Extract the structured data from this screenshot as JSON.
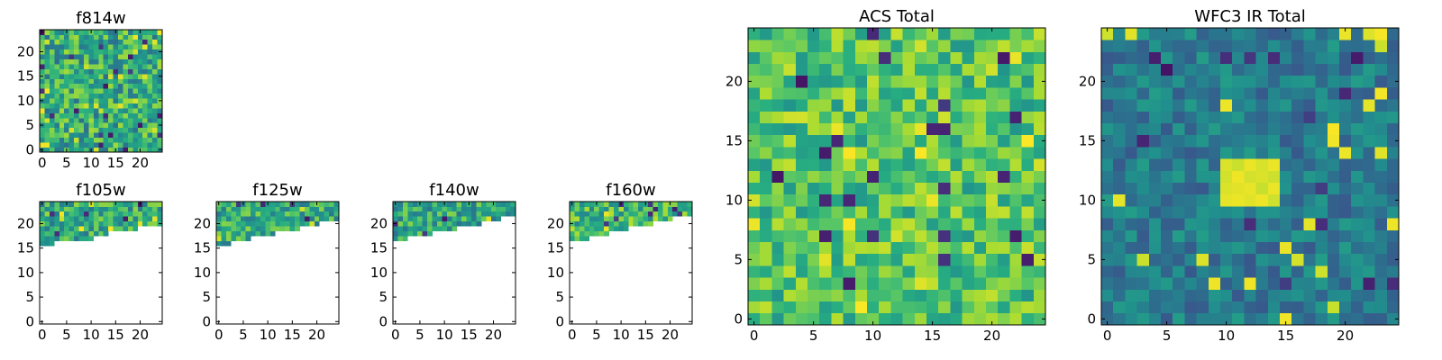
{
  "figure": {
    "colormap": "viridis",
    "background": "#ffffff"
  },
  "chart_data": [
    {
      "type": "heatmap",
      "title": "f814w",
      "grid_size": [
        25,
        25
      ],
      "coverage": "full",
      "value_range": [
        0,
        1
      ],
      "xlim": [
        -0.5,
        24.5
      ],
      "ylim": [
        -0.5,
        24.5
      ],
      "xticks": [
        "0",
        "5",
        "10",
        "15",
        "20"
      ],
      "yticks": [
        "0",
        "5",
        "10",
        "15",
        "20"
      ],
      "xticks_values": [
        0,
        5,
        10,
        15,
        20
      ],
      "yticks_values": [
        0,
        5,
        10,
        15,
        20
      ],
      "values_summary": "noisy field, mostly green-yellow, scattered dark pixels",
      "seed": 11,
      "base_level": 0.62,
      "noise": 0.25
    },
    {
      "type": "heatmap",
      "title": "f105w",
      "grid_size": [
        25,
        25
      ],
      "coverage": "top rows only (approx y 16–24), rest blank",
      "value_range": [
        0,
        1
      ],
      "xlim": [
        -0.5,
        24.5
      ],
      "ylim": [
        -0.5,
        24.5
      ],
      "xticks": [
        "0",
        "5",
        "10",
        "15",
        "20"
      ],
      "yticks": [
        "0",
        "5",
        "10",
        "15",
        "20"
      ],
      "xticks_values": [
        0,
        5,
        10,
        15,
        20
      ],
      "yticks_values": [
        0,
        5,
        10,
        15,
        20
      ],
      "coverage_min_row": [
        16,
        16,
        16,
        17,
        17,
        17,
        17,
        17,
        17,
        17,
        17,
        18,
        18,
        18,
        19,
        19,
        19,
        19,
        19,
        19,
        20,
        20,
        20,
        20,
        20
      ],
      "seed": 21,
      "base_level": 0.62,
      "noise": 0.22
    },
    {
      "type": "heatmap",
      "title": "f125w",
      "grid_size": [
        25,
        25
      ],
      "coverage": "top rows only (approx y 16–24), rest blank",
      "value_range": [
        0,
        1
      ],
      "xlim": [
        -0.5,
        24.5
      ],
      "ylim": [
        -0.5,
        24.5
      ],
      "xticks": [
        "0",
        "5",
        "10",
        "15",
        "20"
      ],
      "yticks": [
        "0",
        "5",
        "10",
        "15",
        "20"
      ],
      "xticks_values": [
        0,
        5,
        10,
        15,
        20
      ],
      "yticks_values": [
        0,
        5,
        10,
        15,
        20
      ],
      "coverage_min_row": [
        16,
        16,
        16,
        17,
        17,
        17,
        17,
        18,
        18,
        18,
        18,
        18,
        19,
        19,
        19,
        19,
        19,
        20,
        20,
        20,
        20,
        21,
        21,
        21,
        21
      ],
      "seed": 31,
      "base_level": 0.62,
      "noise": 0.22
    },
    {
      "type": "heatmap",
      "title": "f140w",
      "grid_size": [
        25,
        25
      ],
      "coverage": "top rows only (approx y 17–24), rest blank",
      "value_range": [
        0,
        1
      ],
      "xlim": [
        -0.5,
        24.5
      ],
      "ylim": [
        -0.5,
        24.5
      ],
      "xticks": [
        "0",
        "5",
        "10",
        "15",
        "20"
      ],
      "yticks": [
        "0",
        "5",
        "10",
        "15",
        "20"
      ],
      "xticks_values": [
        0,
        5,
        10,
        15,
        20
      ],
      "yticks_values": [
        0,
        5,
        10,
        15,
        20
      ],
      "coverage_min_row": [
        17,
        17,
        17,
        18,
        18,
        18,
        18,
        18,
        19,
        19,
        19,
        19,
        19,
        20,
        20,
        20,
        20,
        20,
        21,
        21,
        21,
        21,
        22,
        22,
        22
      ],
      "seed": 41,
      "base_level": 0.6,
      "noise": 0.22
    },
    {
      "type": "heatmap",
      "title": "f160w",
      "grid_size": [
        25,
        25
      ],
      "coverage": "top rows only (approx y 17–24), rest blank",
      "value_range": [
        0,
        1
      ],
      "xlim": [
        -0.5,
        24.5
      ],
      "ylim": [
        -0.5,
        24.5
      ],
      "xticks": [
        "0",
        "5",
        "10",
        "15",
        "20"
      ],
      "yticks": [
        "0",
        "5",
        "10",
        "15",
        "20"
      ],
      "xticks_values": [
        0,
        5,
        10,
        15,
        20
      ],
      "yticks_values": [
        0,
        5,
        10,
        15,
        20
      ],
      "coverage_min_row": [
        17,
        17,
        17,
        17,
        18,
        18,
        18,
        18,
        19,
        19,
        19,
        19,
        20,
        20,
        20,
        20,
        20,
        21,
        21,
        21,
        21,
        22,
        22,
        22,
        22
      ],
      "seed": 51,
      "base_level": 0.68,
      "noise": 0.22
    },
    {
      "type": "heatmap",
      "title": "ACS Total",
      "grid_size": [
        25,
        25
      ],
      "coverage": "full",
      "value_range": [
        0,
        1
      ],
      "xlim": [
        -0.5,
        24.5
      ],
      "ylim": [
        -0.5,
        24.5
      ],
      "xticks": [
        "0",
        "5",
        "10",
        "15",
        "20"
      ],
      "yticks": [
        "0",
        "5",
        "10",
        "15",
        "20"
      ],
      "xticks_values": [
        0,
        5,
        10,
        15,
        20
      ],
      "yticks_values": [
        0,
        5,
        10,
        15,
        20
      ],
      "values_summary": "mostly yellow-green noise with scattered dark-blue pixels",
      "seed": 61,
      "base_level": 0.72,
      "noise": 0.2
    },
    {
      "type": "heatmap",
      "title": "WFC3 IR Total",
      "grid_size": [
        25,
        25
      ],
      "coverage": "full",
      "value_range": [
        0,
        1
      ],
      "xlim": [
        -0.5,
        24.5
      ],
      "ylim": [
        -0.5,
        24.5
      ],
      "xticks": [
        "0",
        "5",
        "10",
        "15",
        "20"
      ],
      "yticks": [
        "0",
        "5",
        "10",
        "15",
        "20"
      ],
      "xticks_values": [
        0,
        5,
        10,
        15,
        20
      ],
      "yticks_values": [
        0,
        5,
        10,
        15,
        20
      ],
      "values_summary": "teal noise with a bright yellow source near x 10–14, y 10–13",
      "seed": 71,
      "base_level": 0.42,
      "noise": 0.14,
      "bright_source": {
        "x": [
          10,
          14
        ],
        "y": [
          10,
          13
        ],
        "level": 0.98
      }
    }
  ]
}
